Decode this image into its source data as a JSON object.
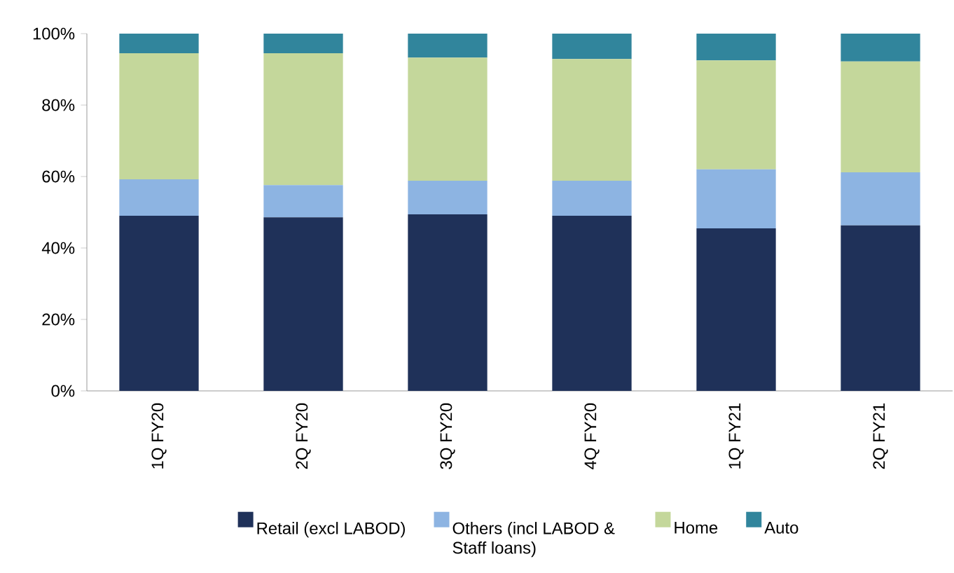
{
  "chart_data": {
    "type": "bar",
    "stacked": true,
    "categories": [
      "1Q FY20",
      "2Q FY20",
      "3Q FY20",
      "4Q FY20",
      "1Q FY21",
      "2Q FY21"
    ],
    "series": [
      {
        "name": "Retail (excl LABOD)",
        "color": "#1f3159",
        "values": [
          49.0,
          48.6,
          49.4,
          49.0,
          45.5,
          46.3
        ]
      },
      {
        "name": "Others (incl LABOD & Staff loans)",
        "color": "#8db4e2",
        "values": [
          10.2,
          9.0,
          9.4,
          9.8,
          16.5,
          14.9
        ]
      },
      {
        "name": "Home",
        "color": "#c4d79b",
        "values": [
          35.3,
          36.9,
          34.5,
          34.1,
          30.5,
          31.0
        ]
      },
      {
        "name": "Auto",
        "color": "#31859c",
        "values": [
          5.5,
          5.5,
          6.7,
          7.1,
          7.5,
          7.8
        ]
      }
    ],
    "ylim": [
      0,
      100
    ],
    "yticks": [
      {
        "value": 0,
        "label": "0%"
      },
      {
        "value": 20,
        "label": "20%"
      },
      {
        "value": 40,
        "label": "40%"
      },
      {
        "value": 60,
        "label": "60%"
      },
      {
        "value": 80,
        "label": "80%"
      },
      {
        "value": 100,
        "label": "100%"
      }
    ],
    "legend": "bottom"
  }
}
